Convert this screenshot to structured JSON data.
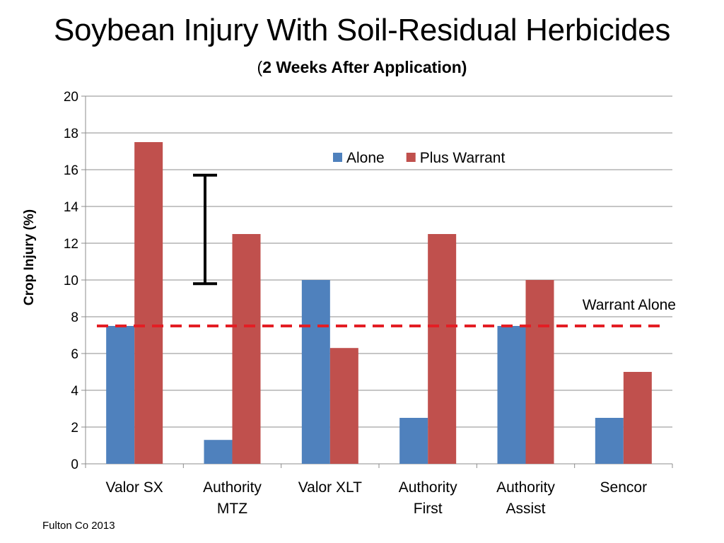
{
  "chart_data": {
    "type": "bar",
    "title": "Soybean Injury With Soil-Residual Herbicides",
    "subtitle_open": "(",
    "subtitle_bold": "2 Weeks After Application)",
    "ylabel": "Crop Injury (%)",
    "xlabel": "",
    "ylim": [
      0,
      20
    ],
    "yticks": [
      0,
      2,
      4,
      6,
      8,
      10,
      12,
      14,
      16,
      18,
      20
    ],
    "grid": true,
    "legend_position": "top-center",
    "categories": [
      [
        "Valor SX"
      ],
      [
        "Authority",
        "MTZ"
      ],
      [
        "Valor XLT"
      ],
      [
        "Authority",
        "First"
      ],
      [
        "Authority",
        "Assist"
      ],
      [
        "Sencor"
      ]
    ],
    "series": [
      {
        "name": "Alone",
        "color": "#4F81BD",
        "values": [
          7.5,
          1.3,
          10,
          2.5,
          7.5,
          2.5
        ]
      },
      {
        "name": "Plus Warrant",
        "color": "#C0504D",
        "values": [
          17.5,
          12.5,
          6.3,
          12.5,
          10,
          5
        ]
      }
    ],
    "reference_line": {
      "label": "Warrant Alone",
      "value": 7.5,
      "color": "#E31E24",
      "style": "dashed"
    },
    "error_bar": {
      "low": 9.8,
      "high": 15.7,
      "color": "#000000"
    }
  },
  "source_note": "Fulton Co 2013"
}
